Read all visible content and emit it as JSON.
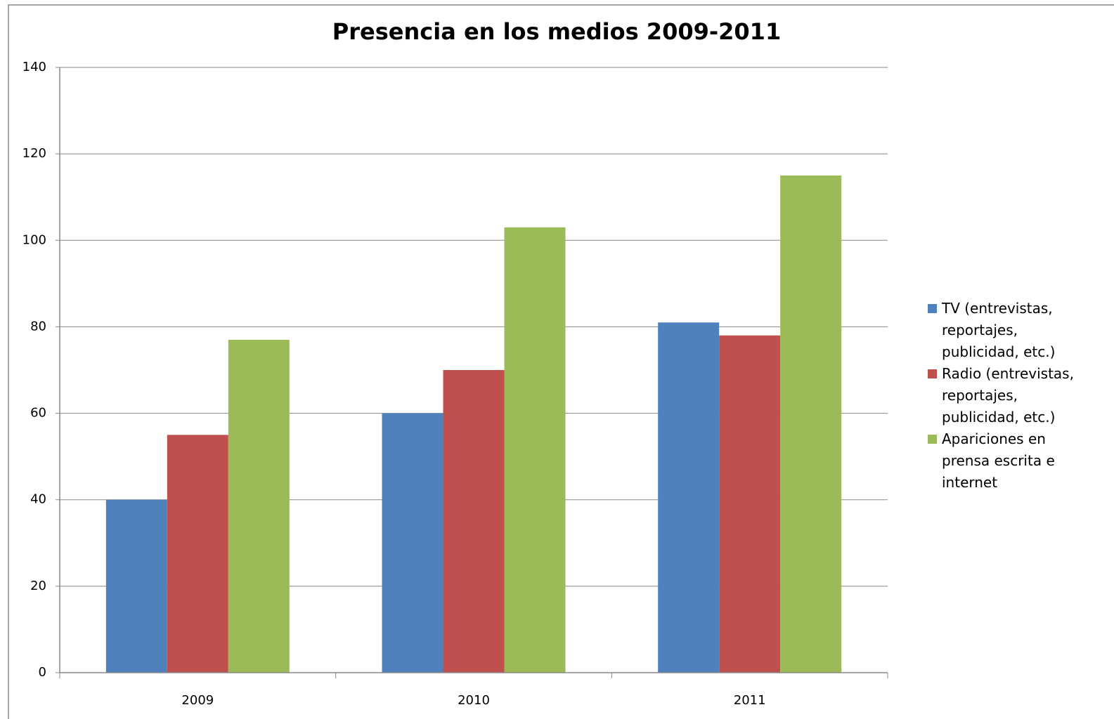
{
  "chart_data": {
    "type": "bar",
    "title": "Presencia en los medios 2009-2011",
    "categories": [
      "2009",
      "2010",
      "2011"
    ],
    "series": [
      {
        "name": "TV (entrevistas, reportajes, publicidad, etc.)",
        "color": "#4f81bd",
        "values": [
          40,
          60,
          81
        ]
      },
      {
        "name": "Radio (entrevistas, reportajes, publicidad, etc.)",
        "color": "#c0504d",
        "values": [
          55,
          70,
          78
        ]
      },
      {
        "name": "Apariciones en prensa escrita e internet",
        "color": "#9bbb59",
        "values": [
          77,
          103,
          115
        ]
      }
    ],
    "ylim": [
      0,
      140
    ],
    "yticks": [
      0,
      20,
      40,
      60,
      80,
      100,
      120,
      140
    ],
    "grid": true,
    "legend": "right"
  }
}
